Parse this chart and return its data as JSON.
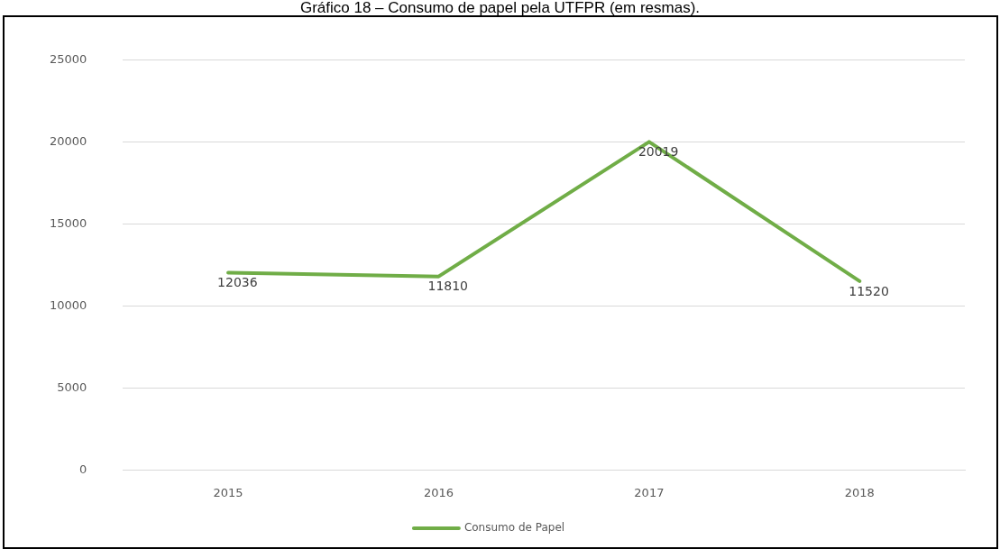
{
  "chart_data": {
    "type": "line",
    "title": "Gráfico 18 – Consumo de papel pela UTFPR (em resmas).",
    "categories": [
      "2015",
      "2016",
      "2017",
      "2018"
    ],
    "series": [
      {
        "name": "Consumo de Papel",
        "color": "#70ad47",
        "values": [
          12036,
          11810,
          20019,
          11520
        ]
      }
    ],
    "ylim": [
      0,
      25000
    ],
    "yticks": [
      0,
      5000,
      10000,
      15000,
      20000,
      25000
    ],
    "grid": "y",
    "legend": "bottom",
    "marker": "none",
    "line_style": "solid",
    "data_labels": true
  }
}
